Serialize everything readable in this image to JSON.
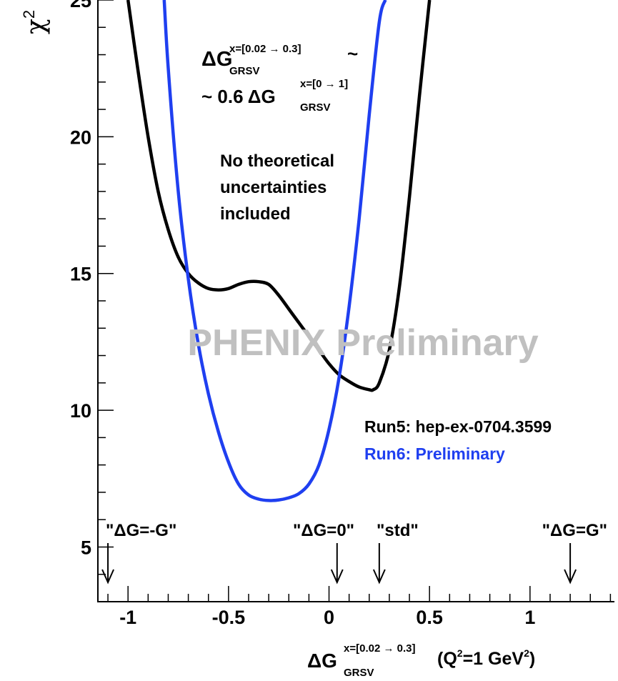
{
  "chart_data": {
    "type": "line",
    "xlim": [
      -1.15,
      1.42
    ],
    "ylim": [
      3.0,
      25.0
    ],
    "grid": false,
    "ylabel": "χ",
    "ylabel_sup": "2",
    "xlabel": {
      "main": "ΔG",
      "sub": "GRSV",
      "sup": "x=[0.02 → 0.3]",
      "tail1": " (Q",
      "tail_sup": "2",
      "tail2": "=1 GeV",
      "tail_sup2": "2",
      "tail3": ")"
    },
    "xticks": [
      {
        "value": -1,
        "label": "-1"
      },
      {
        "value": -0.5,
        "label": "-0.5"
      },
      {
        "value": 0,
        "label": "0"
      },
      {
        "value": 0.5,
        "label": "0.5"
      },
      {
        "value": 1,
        "label": "1"
      }
    ],
    "yticks": [
      {
        "value": 5,
        "label": "5"
      },
      {
        "value": 10,
        "label": "10"
      },
      {
        "value": 15,
        "label": "15"
      },
      {
        "value": 20,
        "label": "20"
      },
      {
        "value": 25,
        "label": "25"
      }
    ],
    "series": [
      {
        "name": "Run5: hep-ex-0704.3599",
        "color": "#000000",
        "x": [
          -1.0,
          -0.95,
          -0.9,
          -0.85,
          -0.8,
          -0.75,
          -0.7,
          -0.65,
          -0.6,
          -0.55,
          -0.5,
          -0.45,
          -0.4,
          -0.35,
          -0.3,
          -0.25,
          -0.2,
          -0.15,
          -0.1,
          -0.05,
          0.0,
          0.05,
          0.1,
          0.15,
          0.2,
          0.22,
          0.25,
          0.3,
          0.35,
          0.4,
          0.45,
          0.5
        ],
        "y": [
          25.0,
          22.4,
          20.0,
          18.0,
          16.6,
          15.6,
          15.0,
          14.65,
          14.45,
          14.4,
          14.45,
          14.6,
          14.7,
          14.7,
          14.6,
          14.2,
          13.7,
          13.2,
          12.7,
          12.2,
          11.7,
          11.3,
          11.05,
          10.85,
          10.75,
          10.75,
          11.0,
          12.2,
          14.5,
          17.8,
          21.5,
          25.0
        ]
      },
      {
        "name": "Run6: Preliminary",
        "color": "#1f3ff0",
        "x": [
          -0.82,
          -0.8,
          -0.75,
          -0.7,
          -0.65,
          -0.6,
          -0.55,
          -0.5,
          -0.45,
          -0.4,
          -0.35,
          -0.3,
          -0.25,
          -0.2,
          -0.15,
          -0.1,
          -0.05,
          0.0,
          0.05,
          0.1,
          0.15,
          0.2,
          0.25,
          0.28
        ],
        "y": [
          25.0,
          22.5,
          18.0,
          14.8,
          12.4,
          10.6,
          9.2,
          8.1,
          7.3,
          6.9,
          6.75,
          6.7,
          6.72,
          6.8,
          6.95,
          7.3,
          8.0,
          9.3,
          11.2,
          13.8,
          17.0,
          20.8,
          24.2,
          25.0
        ]
      }
    ],
    "annotations": {
      "formula": {
        "l1_main": "ΔG",
        "l1_sup": "x=[0.02 → 0.3]",
        "l1_sub": "GRSV",
        "l1_tail": "~",
        "l2_lead": "~ 0.6 ΔG",
        "l2_sup": "x=[0 → 1]",
        "l2_sub": "GRSV"
      },
      "note": [
        "No theoretical",
        "uncertainties",
        "included"
      ],
      "watermark": "PHENIX Preliminary",
      "watermark_color": "#c0c0c0",
      "arrows": [
        {
          "label": "\"ΔG=-G\"",
          "x": -1.1
        },
        {
          "label": "\"ΔG=0\"",
          "x": 0.04
        },
        {
          "label": "\"std\"",
          "x": 0.25
        },
        {
          "label": "\"ΔG=G\"",
          "x": 1.2
        }
      ]
    }
  }
}
